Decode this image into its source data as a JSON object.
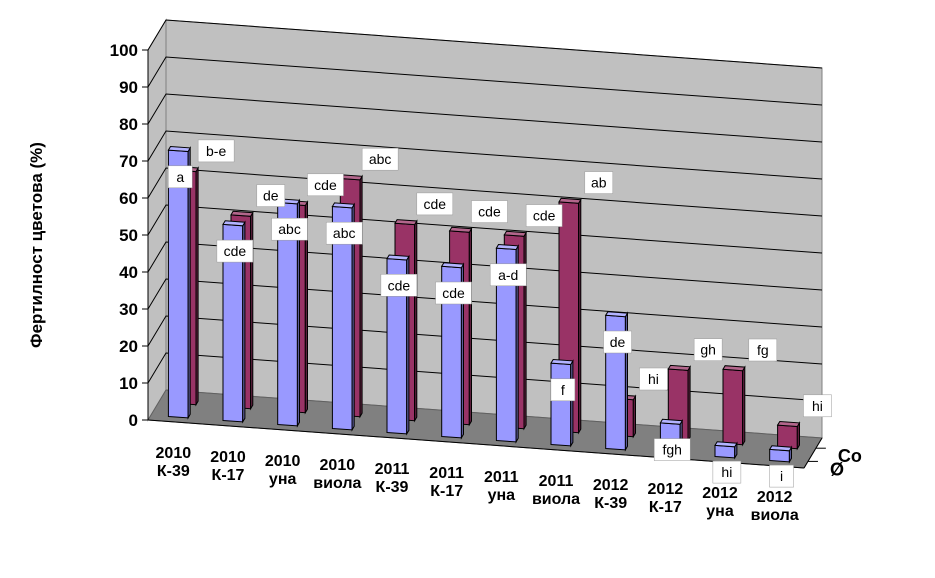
{
  "chart_data": {
    "type": "bar",
    "style": "3d-column",
    "ylabel": "Фертилност цветова (%)",
    "ylim": [
      0,
      100
    ],
    "yticks": [
      "0",
      "10",
      "20",
      "30",
      "40",
      "50",
      "60",
      "70",
      "80",
      "90",
      "100"
    ],
    "grid": true,
    "categories": [
      [
        "2010",
        "К-39"
      ],
      [
        "2010",
        "К-17"
      ],
      [
        "2010",
        "уна"
      ],
      [
        "2010",
        "виола"
      ],
      [
        "2011",
        "К-39"
      ],
      [
        "2011",
        "К-17"
      ],
      [
        "2011",
        "уна"
      ],
      [
        "2011",
        "виола"
      ],
      [
        "2012",
        "К-39"
      ],
      [
        "2012",
        "К-17"
      ],
      [
        "2012",
        "уна"
      ],
      [
        "2012",
        "виола"
      ]
    ],
    "series": [
      {
        "name": "Ø",
        "color": "#9999ff",
        "values": [
          72,
          53,
          60,
          60,
          47,
          46,
          52,
          22,
          36,
          8,
          3,
          3
        ],
        "labels": [
          "a",
          "cde",
          "abc",
          "abc",
          "cde",
          "cde",
          "a-d",
          "f",
          "de",
          "fgh",
          "hi",
          "i"
        ]
      },
      {
        "name": "Co",
        "color": "#993366",
        "values": [
          63,
          52,
          56,
          64,
          53,
          52,
          52,
          62,
          10,
          19,
          20,
          6
        ],
        "labels": [
          "b-e",
          "de",
          "cde",
          "abc",
          "cde",
          "cde",
          "cde",
          "ab",
          "hi",
          "gh",
          "fg",
          "hi"
        ]
      }
    ]
  }
}
